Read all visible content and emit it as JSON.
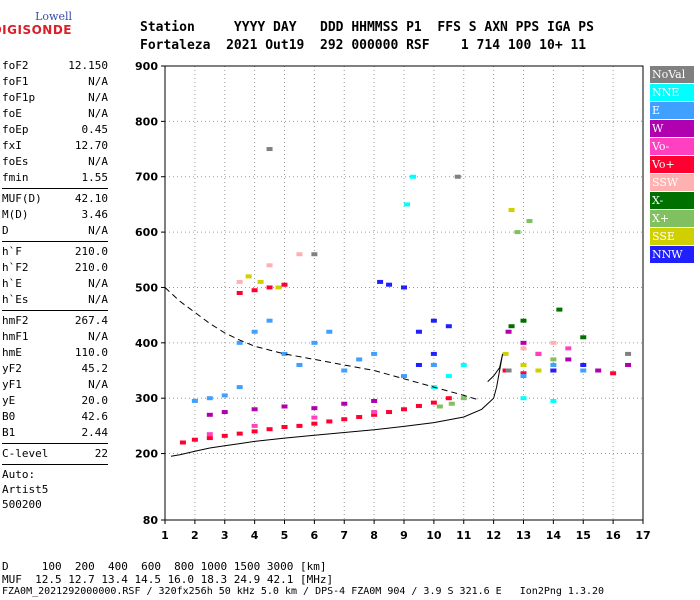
{
  "logo": {
    "line1": "Lowell",
    "line2": "DIGISONDE"
  },
  "header": {
    "row1": "Station     YYYY DAY   DDD HHMMSS P1  FFS S AXN PPS IGA PS",
    "row2": "Fortaleza  2021 Out19  292 000000 RSF    1 714 100 10+ 11"
  },
  "params": [
    [
      {
        "k": "foF2",
        "v": "12.150"
      },
      {
        "k": "foF1",
        "v": "N/A"
      },
      {
        "k": "foF1p",
        "v": "N/A"
      },
      {
        "k": "foE",
        "v": "N/A"
      },
      {
        "k": "foEp",
        "v": "0.45"
      },
      {
        "k": "fxI",
        "v": "12.70"
      },
      {
        "k": "foEs",
        "v": "N/A"
      },
      {
        "k": "fmin",
        "v": "1.55"
      }
    ],
    [
      {
        "k": "MUF(D)",
        "v": "42.10"
      },
      {
        "k": "M(D)",
        "v": "3.46"
      },
      {
        "k": "D",
        "v": "N/A"
      }
    ],
    [
      {
        "k": "h`F",
        "v": "210.0"
      },
      {
        "k": "h`F2",
        "v": "210.0"
      },
      {
        "k": "h`E",
        "v": "N/A"
      },
      {
        "k": "h`Es",
        "v": "N/A"
      }
    ],
    [
      {
        "k": "hmF2",
        "v": "267.4"
      },
      {
        "k": "hmF1",
        "v": "N/A"
      },
      {
        "k": "hmE",
        "v": "110.0"
      },
      {
        "k": "yF2",
        "v": "45.2"
      },
      {
        "k": "yF1",
        "v": "N/A"
      },
      {
        "k": "yE",
        "v": "20.0"
      },
      {
        "k": "B0",
        "v": "42.6"
      },
      {
        "k": "B1",
        "v": "2.44"
      }
    ],
    [
      {
        "k": "C-level",
        "v": "22"
      }
    ]
  ],
  "auto": [
    "Auto:",
    "Artist5",
    "500200"
  ],
  "legend": [
    {
      "label": "NoVal",
      "color": "#808080"
    },
    {
      "label": "NNE",
      "color": "#00ffff"
    },
    {
      "label": "E",
      "color": "#40a0ff"
    },
    {
      "label": "W",
      "color": "#b000b0"
    },
    {
      "label": "Vo-",
      "color": "#ff40c0"
    },
    {
      "label": "Vo+",
      "color": "#ff0030"
    },
    {
      "label": "SSW",
      "color": "#ffb0b0"
    },
    {
      "label": "X-",
      "color": "#007000"
    },
    {
      "label": "X+",
      "color": "#80c060"
    },
    {
      "label": "SSE",
      "color": "#d0d000"
    },
    {
      "label": "NNW",
      "color": "#2020ff"
    }
  ],
  "footer": {
    "d_row": "D     100  200  400  600  800 1000 1500 3000 [km]",
    "muf_row": "MUF  12.5 12.7 13.4 14.5 16.0 18.3 24.9 42.1 [MHz]",
    "info_row": "FZA0M_2021292000000.RSF / 320fx256h 50 kHz 5.0 km / DPS-4 FZA0M 904 / 3.9 S 321.6 E   Ion2Png 1.3.20"
  },
  "chart_data": {
    "type": "scatter",
    "xlim": [
      1,
      17
    ],
    "ylim": [
      80,
      900
    ],
    "x_ticks": [
      1,
      2,
      3,
      4,
      5,
      6,
      7,
      8,
      9,
      10,
      11,
      12,
      13,
      14,
      15,
      16,
      17
    ],
    "y_ticks": [
      80,
      200,
      300,
      400,
      500,
      600,
      700,
      800,
      900
    ],
    "grid": true,
    "series": [
      {
        "name": "Vo+",
        "color": "#ff0030",
        "points": [
          [
            1.6,
            220
          ],
          [
            2.0,
            225
          ],
          [
            2.5,
            228
          ],
          [
            3.0,
            232
          ],
          [
            3.5,
            236
          ],
          [
            4.0,
            240
          ],
          [
            4.5,
            244
          ],
          [
            5.0,
            248
          ],
          [
            5.5,
            250
          ],
          [
            6.0,
            254
          ],
          [
            6.5,
            258
          ],
          [
            7.0,
            262
          ],
          [
            7.5,
            266
          ],
          [
            8.0,
            270
          ],
          [
            8.5,
            275
          ],
          [
            9.0,
            280
          ],
          [
            9.5,
            286
          ],
          [
            10.0,
            292
          ],
          [
            10.5,
            300
          ],
          [
            3.5,
            490
          ],
          [
            4.0,
            495
          ],
          [
            4.5,
            500
          ],
          [
            5.0,
            505
          ],
          [
            12.4,
            350
          ],
          [
            13.0,
            345
          ],
          [
            14.0,
            350
          ],
          [
            16.0,
            345
          ]
        ]
      },
      {
        "name": "E",
        "color": "#40a0ff",
        "points": [
          [
            2.0,
            295
          ],
          [
            2.5,
            300
          ],
          [
            3.0,
            305
          ],
          [
            3.5,
            320
          ],
          [
            3.5,
            400
          ],
          [
            4.0,
            420
          ],
          [
            4.5,
            440
          ],
          [
            5.0,
            380
          ],
          [
            5.5,
            360
          ],
          [
            6.0,
            400
          ],
          [
            6.5,
            420
          ],
          [
            7.0,
            350
          ],
          [
            7.5,
            370
          ],
          [
            8.0,
            380
          ],
          [
            9.0,
            340
          ],
          [
            10.0,
            360
          ],
          [
            13.0,
            340
          ],
          [
            14.0,
            360
          ],
          [
            15.0,
            350
          ]
        ]
      },
      {
        "name": "W",
        "color": "#b000b0",
        "points": [
          [
            2.5,
            270
          ],
          [
            3.0,
            275
          ],
          [
            4.0,
            280
          ],
          [
            5.0,
            285
          ],
          [
            6.0,
            282
          ],
          [
            7.0,
            290
          ],
          [
            8.0,
            295
          ],
          [
            12.5,
            420
          ],
          [
            13.0,
            400
          ],
          [
            13.5,
            380
          ],
          [
            14.5,
            370
          ],
          [
            15.5,
            350
          ],
          [
            16.5,
            360
          ]
        ]
      },
      {
        "name": "NNW",
        "color": "#2020ff",
        "points": [
          [
            8.2,
            510
          ],
          [
            8.5,
            505
          ],
          [
            9.0,
            500
          ],
          [
            9.5,
            420
          ],
          [
            10.0,
            440
          ],
          [
            10.5,
            430
          ],
          [
            10.0,
            380
          ],
          [
            9.5,
            360
          ],
          [
            14.0,
            350
          ],
          [
            15.0,
            360
          ]
        ]
      },
      {
        "name": "NNE",
        "color": "#00ffff",
        "points": [
          [
            9.3,
            700
          ],
          [
            9.1,
            650
          ],
          [
            10.0,
            320
          ],
          [
            10.5,
            340
          ],
          [
            11.0,
            360
          ],
          [
            13.0,
            300
          ],
          [
            14.0,
            295
          ]
        ]
      },
      {
        "name": "SSE",
        "color": "#d0d000",
        "points": [
          [
            3.8,
            520
          ],
          [
            4.2,
            510
          ],
          [
            4.8,
            500
          ],
          [
            12.6,
            640
          ],
          [
            13.0,
            360
          ],
          [
            13.5,
            350
          ],
          [
            12.4,
            380
          ]
        ]
      },
      {
        "name": "X+",
        "color": "#80c060",
        "points": [
          [
            10.2,
            285
          ],
          [
            10.6,
            290
          ],
          [
            11.0,
            300
          ],
          [
            12.8,
            600
          ],
          [
            13.2,
            620
          ],
          [
            14.0,
            370
          ]
        ]
      },
      {
        "name": "X-",
        "color": "#007000",
        "points": [
          [
            12.6,
            430
          ],
          [
            13.0,
            440
          ],
          [
            14.2,
            460
          ],
          [
            15.0,
            410
          ]
        ]
      },
      {
        "name": "Vo-",
        "color": "#ff40c0",
        "points": [
          [
            2.5,
            235
          ],
          [
            4.0,
            250
          ],
          [
            6.0,
            265
          ],
          [
            8.0,
            275
          ],
          [
            13.5,
            380
          ],
          [
            14.5,
            390
          ]
        ]
      },
      {
        "name": "SSW",
        "color": "#ffb0b0",
        "points": [
          [
            3.5,
            510
          ],
          [
            4.5,
            540
          ],
          [
            5.5,
            560
          ],
          [
            13.0,
            390
          ],
          [
            14.0,
            400
          ]
        ]
      },
      {
        "name": "NoVal",
        "color": "#808080",
        "points": [
          [
            4.5,
            750
          ],
          [
            6.0,
            560
          ],
          [
            10.8,
            700
          ],
          [
            12.5,
            350
          ],
          [
            16.5,
            380
          ]
        ]
      }
    ],
    "curves": [
      {
        "style": "dashed",
        "points": [
          [
            1.0,
            500
          ],
          [
            1.5,
            475
          ],
          [
            2.0,
            455
          ],
          [
            2.5,
            435
          ],
          [
            3.0,
            418
          ],
          [
            3.5,
            405
          ],
          [
            4.0,
            394
          ],
          [
            5.0,
            380
          ],
          [
            6.0,
            370
          ],
          [
            7.0,
            360
          ],
          [
            8.0,
            350
          ],
          [
            9.0,
            335
          ],
          [
            10.0,
            320
          ],
          [
            11.0,
            305
          ],
          [
            11.5,
            297
          ]
        ]
      },
      {
        "style": "solid",
        "points": [
          [
            1.2,
            195
          ],
          [
            1.5,
            198
          ],
          [
            2.0,
            204
          ],
          [
            2.5,
            210
          ],
          [
            3.0,
            214
          ],
          [
            3.5,
            218
          ],
          [
            4.0,
            222
          ],
          [
            5.0,
            228
          ],
          [
            6.0,
            233
          ],
          [
            7.0,
            238
          ],
          [
            8.0,
            243
          ],
          [
            9.0,
            249
          ],
          [
            10.0,
            256
          ],
          [
            11.0,
            266
          ],
          [
            11.6,
            280
          ],
          [
            12.0,
            300
          ],
          [
            12.1,
            320
          ]
        ]
      },
      {
        "style": "solid",
        "points": [
          [
            12.1,
            320
          ],
          [
            12.2,
            350
          ],
          [
            12.3,
            380
          ],
          [
            12.2,
            355
          ],
          [
            12.0,
            340
          ],
          [
            11.8,
            330
          ]
        ]
      }
    ]
  }
}
